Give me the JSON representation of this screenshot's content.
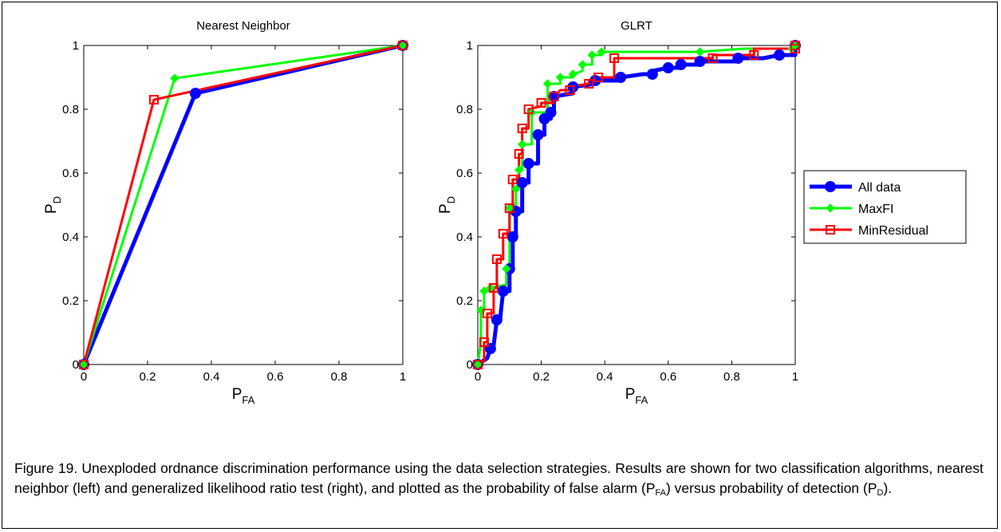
{
  "chart_data": [
    {
      "type": "line",
      "title": "Nearest Neighbor",
      "xlabel_main": "P",
      "xlabel_sub": "FA",
      "ylabel_main": "P",
      "ylabel_sub": "D",
      "xlim": [
        0,
        1
      ],
      "ylim": [
        0,
        1
      ],
      "xticks": [
        "0",
        "0.2",
        "0.4",
        "0.6",
        "0.8",
        "1"
      ],
      "yticks": [
        "0",
        "0.2",
        "0.4",
        "0.6",
        "0.8",
        "1"
      ],
      "grid": false,
      "series": [
        {
          "name": "All data",
          "color": "#0000ff",
          "marker": "circle",
          "points": [
            [
              0,
              0
            ],
            [
              0.35,
              0.85
            ],
            [
              1,
              1
            ]
          ]
        },
        {
          "name": "MaxFI",
          "color": "#00ff00",
          "marker": "diamond",
          "points": [
            [
              0,
              0
            ],
            [
              0.285,
              0.897
            ],
            [
              1,
              1
            ]
          ]
        },
        {
          "name": "MinResidual",
          "color": "#ff0000",
          "marker": "square",
          "points": [
            [
              0,
              0
            ],
            [
              0.22,
              0.83
            ],
            [
              1,
              1
            ]
          ]
        }
      ]
    },
    {
      "type": "line",
      "title": "GLRT",
      "xlabel_main": "P",
      "xlabel_sub": "FA",
      "ylabel_main": "P",
      "ylabel_sub": "D",
      "xlim": [
        0,
        1
      ],
      "ylim": [
        0,
        1
      ],
      "xticks": [
        "0",
        "0.2",
        "0.4",
        "0.6",
        "0.8",
        "1"
      ],
      "yticks": [
        "0",
        "0.2",
        "0.4",
        "0.6",
        "0.8",
        "1"
      ],
      "grid": false,
      "legend_position": "outside-right",
      "series": [
        {
          "name": "All data",
          "color": "#0000ff",
          "marker": "circle",
          "points": [
            [
              0,
              0
            ],
            [
              0.03,
              0.02
            ],
            [
              0.04,
              0.05
            ],
            [
              0.05,
              0.06
            ],
            [
              0.06,
              0.14
            ],
            [
              0.07,
              0.14
            ],
            [
              0.08,
              0.23
            ],
            [
              0.1,
              0.23
            ],
            [
              0.1,
              0.3
            ],
            [
              0.11,
              0.3
            ],
            [
              0.11,
              0.4
            ],
            [
              0.12,
              0.4
            ],
            [
              0.12,
              0.48
            ],
            [
              0.14,
              0.48
            ],
            [
              0.14,
              0.57
            ],
            [
              0.16,
              0.57
            ],
            [
              0.16,
              0.63
            ],
            [
              0.19,
              0.63
            ],
            [
              0.19,
              0.72
            ],
            [
              0.21,
              0.72
            ],
            [
              0.21,
              0.77
            ],
            [
              0.23,
              0.77
            ],
            [
              0.23,
              0.79
            ],
            [
              0.24,
              0.8
            ],
            [
              0.24,
              0.84
            ],
            [
              0.3,
              0.85
            ],
            [
              0.3,
              0.87
            ],
            [
              0.37,
              0.88
            ],
            [
              0.37,
              0.89
            ],
            [
              0.45,
              0.89
            ],
            [
              0.45,
              0.9
            ],
            [
              0.52,
              0.91
            ],
            [
              0.55,
              0.91
            ],
            [
              0.55,
              0.92
            ],
            [
              0.6,
              0.93
            ],
            [
              0.64,
              0.93
            ],
            [
              0.64,
              0.94
            ],
            [
              0.7,
              0.94
            ],
            [
              0.7,
              0.95
            ],
            [
              0.82,
              0.95
            ],
            [
              0.82,
              0.96
            ],
            [
              0.9,
              0.96
            ],
            [
              0.95,
              0.97
            ],
            [
              1,
              0.97
            ],
            [
              1,
              1
            ]
          ]
        },
        {
          "name": "MaxFI",
          "color": "#00ff00",
          "marker": "diamond",
          "points": [
            [
              0,
              0
            ],
            [
              0.01,
              0.07
            ],
            [
              0.01,
              0.17
            ],
            [
              0.02,
              0.17
            ],
            [
              0.02,
              0.23
            ],
            [
              0.04,
              0.23
            ],
            [
              0.04,
              0.24
            ],
            [
              0.09,
              0.25
            ],
            [
              0.09,
              0.3
            ],
            [
              0.1,
              0.3
            ],
            [
              0.1,
              0.49
            ],
            [
              0.12,
              0.49
            ],
            [
              0.12,
              0.55
            ],
            [
              0.13,
              0.56
            ],
            [
              0.13,
              0.61
            ],
            [
              0.14,
              0.61
            ],
            [
              0.14,
              0.69
            ],
            [
              0.17,
              0.69
            ],
            [
              0.17,
              0.79
            ],
            [
              0.22,
              0.79
            ],
            [
              0.22,
              0.88
            ],
            [
              0.26,
              0.88
            ],
            [
              0.26,
              0.9
            ],
            [
              0.3,
              0.9
            ],
            [
              0.3,
              0.91
            ],
            [
              0.33,
              0.92
            ],
            [
              0.33,
              0.94
            ],
            [
              0.36,
              0.94
            ],
            [
              0.36,
              0.97
            ],
            [
              0.39,
              0.97
            ],
            [
              0.39,
              0.98
            ],
            [
              0.54,
              0.98
            ],
            [
              0.7,
              0.98
            ],
            [
              0.84,
              0.99
            ],
            [
              0.99,
              0.99
            ],
            [
              0.99,
              1
            ],
            [
              1,
              1
            ]
          ]
        },
        {
          "name": "MinResidual",
          "color": "#ff0000",
          "marker": "square",
          "points": [
            [
              0,
              0
            ],
            [
              0.02,
              0.01
            ],
            [
              0.02,
              0.07
            ],
            [
              0.03,
              0.07
            ],
            [
              0.03,
              0.16
            ],
            [
              0.05,
              0.16
            ],
            [
              0.05,
              0.24
            ],
            [
              0.06,
              0.24
            ],
            [
              0.06,
              0.33
            ],
            [
              0.08,
              0.33
            ],
            [
              0.08,
              0.41
            ],
            [
              0.1,
              0.41
            ],
            [
              0.1,
              0.49
            ],
            [
              0.11,
              0.49
            ],
            [
              0.11,
              0.58
            ],
            [
              0.13,
              0.58
            ],
            [
              0.13,
              0.66
            ],
            [
              0.14,
              0.66
            ],
            [
              0.14,
              0.74
            ],
            [
              0.16,
              0.74
            ],
            [
              0.16,
              0.8
            ],
            [
              0.2,
              0.81
            ],
            [
              0.2,
              0.82
            ],
            [
              0.24,
              0.82
            ],
            [
              0.24,
              0.84
            ],
            [
              0.26,
              0.86
            ],
            [
              0.29,
              0.86
            ],
            [
              0.29,
              0.87
            ],
            [
              0.35,
              0.88
            ],
            [
              0.35,
              0.89
            ],
            [
              0.38,
              0.9
            ],
            [
              0.43,
              0.9
            ],
            [
              0.43,
              0.96
            ],
            [
              0.55,
              0.96
            ],
            [
              0.74,
              0.96
            ],
            [
              0.74,
              0.97
            ],
            [
              0.87,
              0.97
            ],
            [
              0.87,
              0.99
            ],
            [
              1,
              0.99
            ],
            [
              1,
              1
            ]
          ]
        }
      ]
    }
  ],
  "legend": {
    "entries": [
      {
        "label": "All data",
        "color": "#0000ff",
        "marker": "circle"
      },
      {
        "label": "MaxFI",
        "color": "#00ff00",
        "marker": "diamond"
      },
      {
        "label": "MinResidual",
        "color": "#ff0000",
        "marker": "square"
      }
    ]
  },
  "caption": {
    "part1": "Figure 19.  Unexploded ordnance discrimination performance using the data selection strategies.  Results are shown for two classification algorithms, nearest neighbor (left) and generalized likelihood ratio test (right), and plotted as the probability of false alarm (P",
    "sub1": "FA",
    "part2": ") versus probability of detection (P",
    "sub2": "D",
    "part3": ")."
  }
}
